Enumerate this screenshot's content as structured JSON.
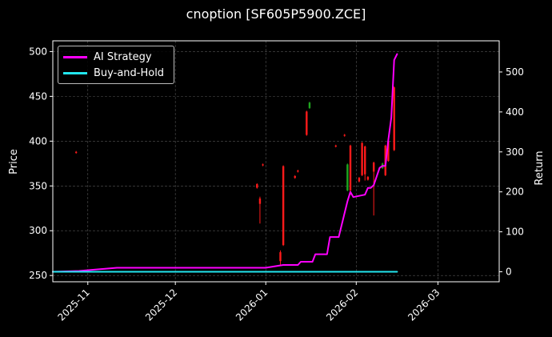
{
  "chart_data": {
    "type": "line",
    "title": "cnoption [SF605P5900.ZCE]",
    "ylabel_left": "Price",
    "ylabel_right": "Return",
    "xlabel": "",
    "xlim": [
      "2025-10-20",
      "2026-03-22"
    ],
    "ylim_left": [
      243,
      512
    ],
    "ylim_right": [
      -25,
      578
    ],
    "x_ticks": [
      "2025-11",
      "2025-12",
      "2026-01",
      "2026-02",
      "2026-03"
    ],
    "x_tick_dates": [
      "2025-11-01",
      "2025-12-01",
      "2026-01-01",
      "2026-02-01",
      "2026-03-01"
    ],
    "y_ticks_left": [
      250,
      300,
      350,
      400,
      450,
      500
    ],
    "y_ticks_right": [
      0,
      100,
      200,
      300,
      400,
      500
    ],
    "grid": true,
    "legend_placement": "upper left",
    "candles": [
      {
        "date": "2025-10-28",
        "open": 388,
        "close": 387,
        "high": 389,
        "low": 386
      },
      {
        "date": "2025-12-29",
        "open": 352,
        "close": 348,
        "high": 353,
        "low": 347
      },
      {
        "date": "2025-12-30",
        "open": 336,
        "close": 330,
        "high": 338,
        "low": 308
      },
      {
        "date": "2025-12-31",
        "open": 374,
        "close": 373,
        "high": 375,
        "low": 372
      },
      {
        "date": "2026-01-06",
        "open": 276,
        "close": 266,
        "high": 278,
        "low": 262
      },
      {
        "date": "2026-01-07",
        "open": 372,
        "close": 284,
        "high": 373,
        "low": 283
      },
      {
        "date": "2026-01-11",
        "open": 361,
        "close": 359,
        "high": 362,
        "low": 358
      },
      {
        "date": "2026-01-12",
        "open": 367,
        "close": 366,
        "high": 368,
        "low": 365
      },
      {
        "date": "2026-01-15",
        "open": 433,
        "close": 407,
        "high": 434,
        "low": 406
      },
      {
        "date": "2026-01-16",
        "open": 437,
        "close": 443,
        "high": 444,
        "low": 436
      },
      {
        "date": "2026-01-25",
        "open": 395,
        "close": 394,
        "high": 396,
        "low": 393
      },
      {
        "date": "2026-01-28",
        "open": 407,
        "close": 406,
        "high": 408,
        "low": 405
      },
      {
        "date": "2026-01-29",
        "open": 345,
        "close": 374,
        "high": 375,
        "low": 344
      },
      {
        "date": "2026-01-30",
        "open": 395,
        "close": 345,
        "high": 396,
        "low": 340
      },
      {
        "date": "2026-02-02",
        "open": 359,
        "close": 355,
        "high": 360,
        "low": 354
      },
      {
        "date": "2026-02-03",
        "open": 398,
        "close": 362,
        "high": 399,
        "low": 361
      },
      {
        "date": "2026-02-04",
        "open": 394,
        "close": 363,
        "high": 395,
        "low": 356
      },
      {
        "date": "2026-02-05",
        "open": 360,
        "close": 357,
        "high": 361,
        "low": 356
      },
      {
        "date": "2026-02-07",
        "open": 376,
        "close": 366,
        "high": 377,
        "low": 317
      },
      {
        "date": "2026-02-10",
        "open": 370,
        "close": 375,
        "high": 376,
        "low": 369
      },
      {
        "date": "2026-02-11",
        "open": 395,
        "close": 362,
        "high": 396,
        "low": 361
      },
      {
        "date": "2026-02-12",
        "open": 400,
        "close": 378,
        "high": 401,
        "low": 377
      },
      {
        "date": "2026-02-14",
        "open": 460,
        "close": 390,
        "high": 461,
        "low": 389
      }
    ],
    "series": [
      {
        "name": "AI Strategy",
        "color": "#ff00ff",
        "axis": "right",
        "x": [
          "2025-10-20",
          "2025-10-29",
          "2025-11-11",
          "2026-01-01",
          "2026-01-07",
          "2026-01-08",
          "2026-01-12",
          "2026-01-13",
          "2026-01-17",
          "2026-01-18",
          "2026-01-22",
          "2026-01-23",
          "2026-01-26",
          "2026-01-29",
          "2026-01-30",
          "2026-01-31",
          "2026-02-04",
          "2026-02-05",
          "2026-02-06",
          "2026-02-07",
          "2026-02-09",
          "2026-02-10",
          "2026-02-11",
          "2026-02-12",
          "2026-02-13",
          "2026-02-14",
          "2026-02-15"
        ],
        "values": [
          0,
          2,
          10,
          10,
          17,
          17,
          17,
          25,
          25,
          44,
          44,
          87,
          87,
          177,
          200,
          187,
          193,
          210,
          210,
          217,
          260,
          265,
          265,
          330,
          385,
          530,
          545
        ]
      },
      {
        "name": "Buy-and-Hold",
        "color": "#22e6ee",
        "axis": "right",
        "x": [
          "2025-10-20",
          "2026-02-15"
        ],
        "values": [
          0,
          0
        ]
      }
    ],
    "up_color": "#1fa51f",
    "down_color": "#ff1a1a"
  }
}
